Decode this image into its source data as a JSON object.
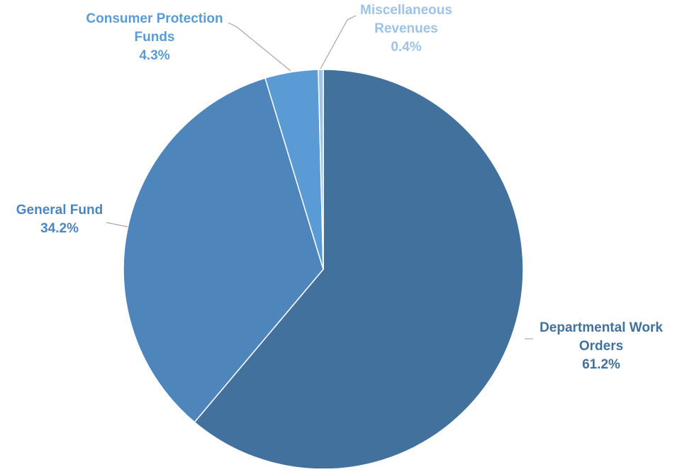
{
  "chart_data": {
    "type": "pie",
    "title": "",
    "start_angle_deg": 0,
    "direction": "clockwise",
    "slices": [
      {
        "label_lines": [
          "Departmental Work",
          "Orders"
        ],
        "value_label": "61.2%",
        "value": 61.2,
        "color": "#41719c",
        "label_color": "#41719c"
      },
      {
        "label_lines": [
          "General Fund"
        ],
        "value_label": "34.2%",
        "value": 34.2,
        "color": "#4e86bb",
        "label_color": "#4e86bb"
      },
      {
        "label_lines": [
          "Consumer Protection",
          "Funds"
        ],
        "value_label": "4.3%",
        "value": 4.3,
        "color": "#5b9bd5",
        "label_color": "#5b9bd5"
      },
      {
        "label_lines": [
          "Miscellaneous",
          "Revenues"
        ],
        "value_label": "0.4%",
        "value": 0.4,
        "color": "#9dc3e6",
        "label_color": "#9dc3e6"
      }
    ],
    "leader_line_color": "#a6a6a6",
    "slice_border_color": "#ffffff"
  }
}
